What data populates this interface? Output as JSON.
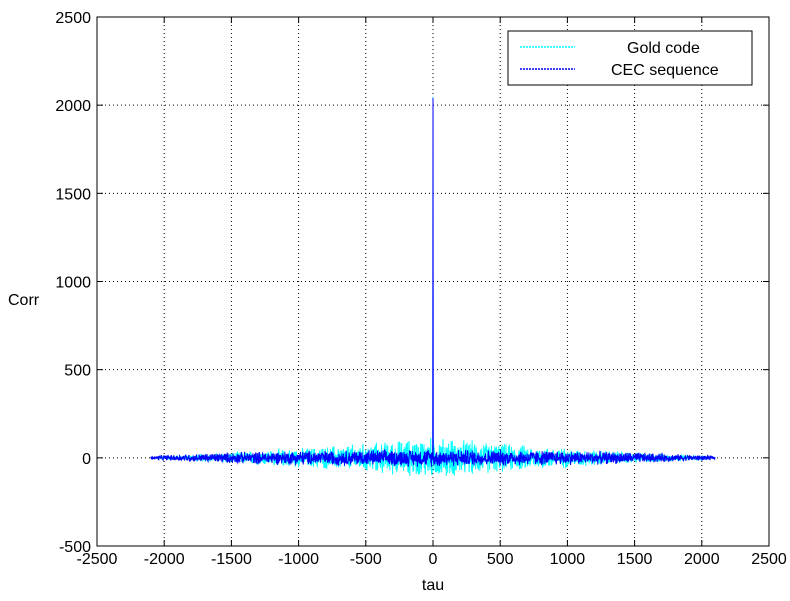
{
  "chart_data": {
    "type": "line",
    "title": "",
    "xlabel": "tau",
    "ylabel": "Corr",
    "xlim": [
      -2500,
      2500
    ],
    "ylim": [
      -500,
      2500
    ],
    "x_ticks": [
      -2500,
      -2000,
      -1500,
      -1000,
      -500,
      0,
      500,
      1000,
      1500,
      2000,
      2500
    ],
    "y_ticks": [
      -500,
      0,
      500,
      1000,
      1500,
      2000,
      2500
    ],
    "x_tick_labels": [
      "-2500",
      "-2000",
      "-1500",
      "-1000",
      "-500",
      "0",
      "500",
      "1000",
      "1500",
      "2000",
      "2500"
    ],
    "y_tick_labels": [
      "-500",
      "0",
      "500",
      "1000",
      "1500",
      "2000",
      "2500"
    ],
    "grid": true,
    "grid_style": "dashed",
    "legend_position": "top-right",
    "series": [
      {
        "name": "Gold code",
        "color": "#00ffff",
        "x_range": [
          -2047,
          2047
        ],
        "peak": {
          "x": 0,
          "y": 2047
        },
        "noise_envelope": [
          {
            "x": -2047,
            "amp": 10
          },
          {
            "x": -1500,
            "amp": 35
          },
          {
            "x": -1000,
            "amp": 60
          },
          {
            "x": -500,
            "amp": 90
          },
          {
            "x": 0,
            "amp": 130
          },
          {
            "x": 500,
            "amp": 90
          },
          {
            "x": 1000,
            "amp": 60
          },
          {
            "x": 1500,
            "amp": 35
          },
          {
            "x": 2047,
            "amp": 10
          }
        ]
      },
      {
        "name": "CEC sequence",
        "color": "#0000ff",
        "x_range": [
          -2100,
          2100
        ],
        "peak": {
          "x": 0,
          "y": 2040
        },
        "noise_envelope": [
          {
            "x": -2100,
            "amp": 12
          },
          {
            "x": -1500,
            "amp": 35
          },
          {
            "x": -1000,
            "amp": 45
          },
          {
            "x": -500,
            "amp": 50
          },
          {
            "x": 0,
            "amp": 55
          },
          {
            "x": 500,
            "amp": 50
          },
          {
            "x": 1000,
            "amp": 45
          },
          {
            "x": 1500,
            "amp": 35
          },
          {
            "x": 2100,
            "amp": 12
          }
        ]
      }
    ]
  }
}
